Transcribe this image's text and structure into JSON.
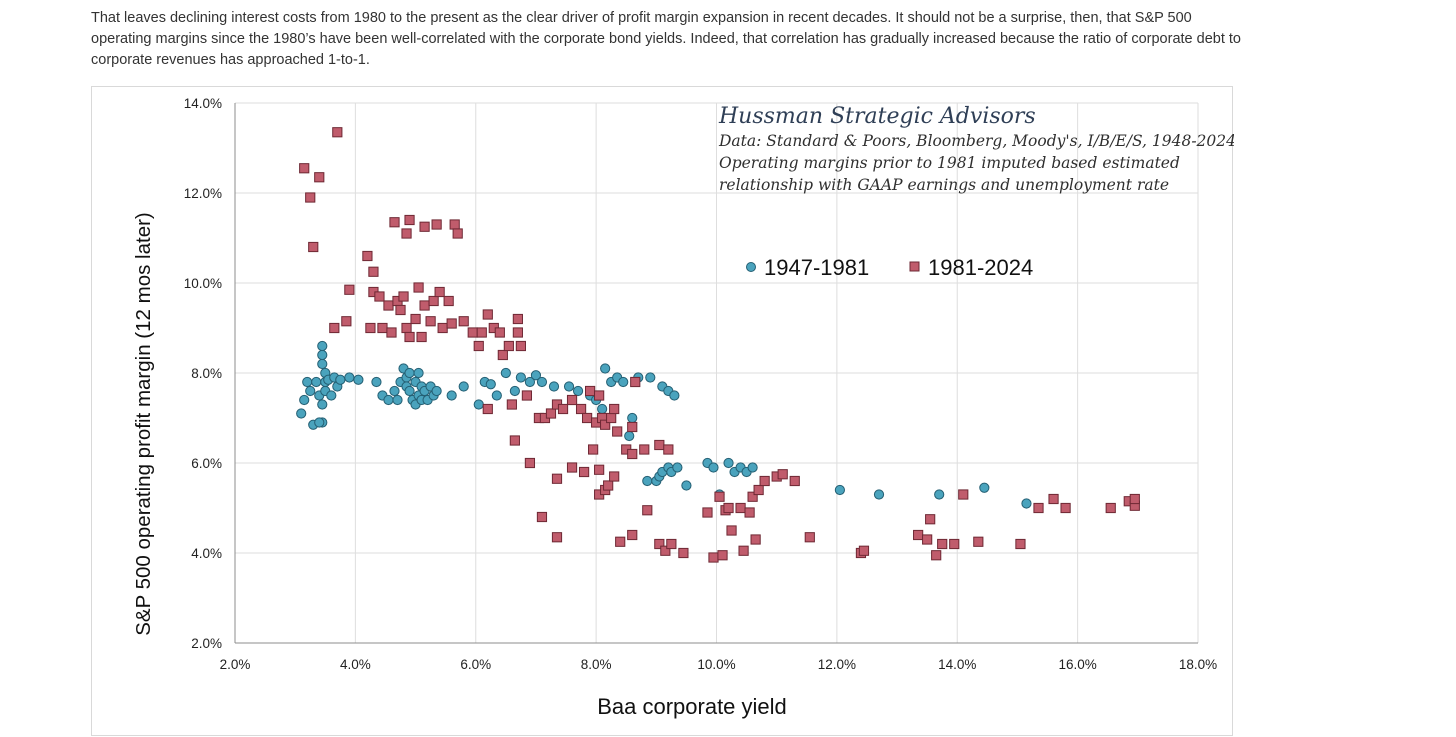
{
  "article": {
    "paragraph": "That leaves declining interest costs from 1980 to the present as the clear driver of profit margin expansion in recent decades. It should not be a surprise, then, that S&P 500 operating margins since the 1980’s have been well-correlated with the corporate bond yields. Indeed, that correlation has gradually increased because the ratio of corporate debt to corporate revenues has approached 1-to-1."
  },
  "chart_data": {
    "type": "scatter",
    "title": "Hussman Strategic Advisors",
    "annotations": [
      "Data: Standard & Poors, Bloomberg, Moody's, I/B/E/S, 1948-2024",
      "Operating margins prior to 1981 imputed based estimated",
      "relationship with GAAP earnings and unemployment rate"
    ],
    "xlabel": "Baa corporate yield",
    "ylabel": "S&P 500 operating profit margin  (12 mos later)",
    "xlim": [
      2,
      18
    ],
    "ylim": [
      2,
      14
    ],
    "x_ticks": [
      "2.0%",
      "4.0%",
      "6.0%",
      "8.0%",
      "10.0%",
      "12.0%",
      "14.0%",
      "16.0%",
      "18.0%"
    ],
    "y_ticks": [
      "2.0%",
      "4.0%",
      "6.0%",
      "8.0%",
      "10.0%",
      "12.0%",
      "14.0%"
    ],
    "grid": true,
    "legend_position": "top-right",
    "series": [
      {
        "name": "1947-1981",
        "marker": "circle",
        "color": "#4aa3bd",
        "stroke": "#245f73",
        "points": [
          [
            3.1,
            7.1
          ],
          [
            3.15,
            7.4
          ],
          [
            3.2,
            7.8
          ],
          [
            3.25,
            7.6
          ],
          [
            3.3,
            6.85
          ],
          [
            3.35,
            7.8
          ],
          [
            3.4,
            7.5
          ],
          [
            3.45,
            6.9
          ],
          [
            3.45,
            7.3
          ],
          [
            3.5,
            7.6
          ],
          [
            3.5,
            7.8
          ],
          [
            3.45,
            8.2
          ],
          [
            3.45,
            8.4
          ],
          [
            3.45,
            8.6
          ],
          [
            3.5,
            8.0
          ],
          [
            3.4,
            6.9
          ],
          [
            3.55,
            7.85
          ],
          [
            3.6,
            7.5
          ],
          [
            3.65,
            7.9
          ],
          [
            3.7,
            7.7
          ],
          [
            3.75,
            7.85
          ],
          [
            3.9,
            7.9
          ],
          [
            4.05,
            7.85
          ],
          [
            4.35,
            7.8
          ],
          [
            4.45,
            7.5
          ],
          [
            4.55,
            7.4
          ],
          [
            4.65,
            7.6
          ],
          [
            4.7,
            7.4
          ],
          [
            4.75,
            7.8
          ],
          [
            4.8,
            8.1
          ],
          [
            4.85,
            7.9
          ],
          [
            4.85,
            7.7
          ],
          [
            4.9,
            7.6
          ],
          [
            4.9,
            8.0
          ],
          [
            4.95,
            7.4
          ],
          [
            5.0,
            7.3
          ],
          [
            5.0,
            7.8
          ],
          [
            5.05,
            7.5
          ],
          [
            5.05,
            8.0
          ],
          [
            5.1,
            7.7
          ],
          [
            5.1,
            7.4
          ],
          [
            5.15,
            7.6
          ],
          [
            5.2,
            7.4
          ],
          [
            5.25,
            7.7
          ],
          [
            5.3,
            7.5
          ],
          [
            5.35,
            7.6
          ],
          [
            5.6,
            7.5
          ],
          [
            5.8,
            7.7
          ],
          [
            6.05,
            7.3
          ],
          [
            6.15,
            7.8
          ],
          [
            6.25,
            7.75
          ],
          [
            6.35,
            7.5
          ],
          [
            6.5,
            8.0
          ],
          [
            6.65,
            7.6
          ],
          [
            6.75,
            7.9
          ],
          [
            6.9,
            7.8
          ],
          [
            7.0,
            7.95
          ],
          [
            7.1,
            7.8
          ],
          [
            7.3,
            7.7
          ],
          [
            7.55,
            7.7
          ],
          [
            7.7,
            7.6
          ],
          [
            7.9,
            7.5
          ],
          [
            8.0,
            7.4
          ],
          [
            8.1,
            7.2
          ],
          [
            8.15,
            8.1
          ],
          [
            8.25,
            7.8
          ],
          [
            8.35,
            7.9
          ],
          [
            8.45,
            7.8
          ],
          [
            8.55,
            6.6
          ],
          [
            8.6,
            7.0
          ],
          [
            8.7,
            7.9
          ],
          [
            8.9,
            7.9
          ],
          [
            9.1,
            7.7
          ],
          [
            9.2,
            7.6
          ],
          [
            9.3,
            7.5
          ],
          [
            8.85,
            5.6
          ],
          [
            9.0,
            5.6
          ],
          [
            9.05,
            5.7
          ],
          [
            9.1,
            5.8
          ],
          [
            9.2,
            5.9
          ],
          [
            9.25,
            5.8
          ],
          [
            9.35,
            5.9
          ],
          [
            9.5,
            5.5
          ],
          [
            9.85,
            6.0
          ],
          [
            9.95,
            5.9
          ],
          [
            10.05,
            5.3
          ],
          [
            10.2,
            6.0
          ],
          [
            10.3,
            5.8
          ],
          [
            10.4,
            5.9
          ],
          [
            10.5,
            5.8
          ],
          [
            10.6,
            5.9
          ],
          [
            12.05,
            5.4
          ],
          [
            12.7,
            5.3
          ],
          [
            13.7,
            5.3
          ],
          [
            14.45,
            5.45
          ],
          [
            15.15,
            5.1
          ]
        ]
      },
      {
        "name": "1981-2024",
        "marker": "square",
        "color": "#c05c6c",
        "stroke": "#6e2834",
        "points": [
          [
            3.15,
            12.55
          ],
          [
            3.25,
            11.9
          ],
          [
            3.4,
            12.35
          ],
          [
            3.3,
            10.8
          ],
          [
            3.65,
            9.0
          ],
          [
            3.7,
            13.35
          ],
          [
            3.85,
            9.15
          ],
          [
            3.9,
            9.85
          ],
          [
            4.2,
            10.6
          ],
          [
            4.25,
            9.0
          ],
          [
            4.3,
            9.8
          ],
          [
            4.3,
            10.25
          ],
          [
            4.4,
            9.7
          ],
          [
            4.45,
            9.0
          ],
          [
            4.55,
            9.5
          ],
          [
            4.6,
            8.9
          ],
          [
            4.65,
            11.35
          ],
          [
            4.7,
            9.6
          ],
          [
            4.75,
            9.4
          ],
          [
            4.8,
            9.7
          ],
          [
            4.85,
            9.0
          ],
          [
            4.85,
            11.1
          ],
          [
            4.9,
            8.8
          ],
          [
            4.9,
            11.4
          ],
          [
            5.0,
            9.2
          ],
          [
            5.05,
            9.9
          ],
          [
            5.1,
            8.8
          ],
          [
            5.15,
            9.5
          ],
          [
            5.15,
            11.25
          ],
          [
            5.25,
            9.15
          ],
          [
            5.3,
            9.6
          ],
          [
            5.35,
            11.3
          ],
          [
            5.4,
            9.8
          ],
          [
            5.45,
            9.0
          ],
          [
            5.55,
            9.6
          ],
          [
            5.65,
            11.3
          ],
          [
            5.7,
            11.1
          ],
          [
            5.6,
            9.1
          ],
          [
            5.8,
            9.15
          ],
          [
            5.95,
            8.9
          ],
          [
            6.05,
            8.6
          ],
          [
            6.1,
            8.9
          ],
          [
            6.2,
            9.3
          ],
          [
            6.3,
            9.0
          ],
          [
            6.4,
            8.9
          ],
          [
            6.45,
            8.4
          ],
          [
            6.55,
            8.6
          ],
          [
            6.7,
            8.9
          ],
          [
            6.75,
            8.6
          ],
          [
            6.7,
            9.2
          ],
          [
            6.2,
            7.2
          ],
          [
            6.6,
            7.3
          ],
          [
            6.85,
            7.5
          ],
          [
            7.05,
            7.0
          ],
          [
            7.15,
            7.0
          ],
          [
            7.25,
            7.1
          ],
          [
            7.35,
            7.3
          ],
          [
            7.45,
            7.2
          ],
          [
            7.6,
            7.4
          ],
          [
            7.75,
            7.2
          ],
          [
            7.85,
            7.0
          ],
          [
            7.9,
            7.6
          ],
          [
            8.0,
            6.9
          ],
          [
            8.05,
            7.5
          ],
          [
            8.1,
            7.0
          ],
          [
            8.15,
            6.85
          ],
          [
            8.25,
            7.0
          ],
          [
            8.3,
            7.2
          ],
          [
            8.35,
            6.7
          ],
          [
            8.5,
            6.3
          ],
          [
            8.6,
            6.2
          ],
          [
            8.6,
            6.8
          ],
          [
            8.65,
            7.8
          ],
          [
            8.8,
            6.3
          ],
          [
            9.05,
            6.4
          ],
          [
            9.2,
            6.3
          ],
          [
            6.65,
            6.5
          ],
          [
            6.9,
            6.0
          ],
          [
            7.1,
            4.8
          ],
          [
            7.35,
            4.35
          ],
          [
            7.35,
            5.65
          ],
          [
            7.6,
            5.9
          ],
          [
            7.8,
            5.8
          ],
          [
            7.95,
            6.3
          ],
          [
            8.05,
            5.3
          ],
          [
            8.05,
            5.85
          ],
          [
            8.15,
            5.4
          ],
          [
            8.2,
            5.5
          ],
          [
            8.3,
            5.7
          ],
          [
            8.4,
            4.25
          ],
          [
            8.6,
            4.4
          ],
          [
            8.85,
            4.95
          ],
          [
            9.05,
            4.2
          ],
          [
            9.15,
            4.05
          ],
          [
            9.25,
            4.2
          ],
          [
            9.45,
            4.0
          ],
          [
            9.85,
            4.9
          ],
          [
            9.95,
            3.9
          ],
          [
            10.05,
            5.25
          ],
          [
            10.1,
            3.95
          ],
          [
            10.15,
            4.95
          ],
          [
            10.2,
            5.0
          ],
          [
            10.25,
            4.5
          ],
          [
            10.4,
            5.0
          ],
          [
            10.45,
            4.05
          ],
          [
            10.55,
            4.9
          ],
          [
            10.6,
            5.25
          ],
          [
            10.65,
            4.3
          ],
          [
            10.7,
            5.4
          ],
          [
            10.8,
            5.6
          ],
          [
            11.0,
            5.7
          ],
          [
            11.1,
            5.75
          ],
          [
            11.3,
            5.6
          ],
          [
            11.55,
            4.35
          ],
          [
            12.4,
            4.0
          ],
          [
            12.45,
            4.05
          ],
          [
            13.35,
            4.4
          ],
          [
            13.5,
            4.3
          ],
          [
            13.55,
            4.75
          ],
          [
            13.65,
            3.95
          ],
          [
            13.75,
            4.2
          ],
          [
            13.95,
            4.2
          ],
          [
            14.1,
            5.3
          ],
          [
            14.35,
            4.25
          ],
          [
            15.05,
            4.2
          ],
          [
            15.35,
            5.0
          ],
          [
            15.6,
            5.2
          ],
          [
            15.8,
            5.0
          ],
          [
            16.55,
            5.0
          ],
          [
            16.85,
            5.15
          ],
          [
            16.95,
            5.05
          ],
          [
            16.95,
            5.2
          ]
        ]
      }
    ]
  }
}
